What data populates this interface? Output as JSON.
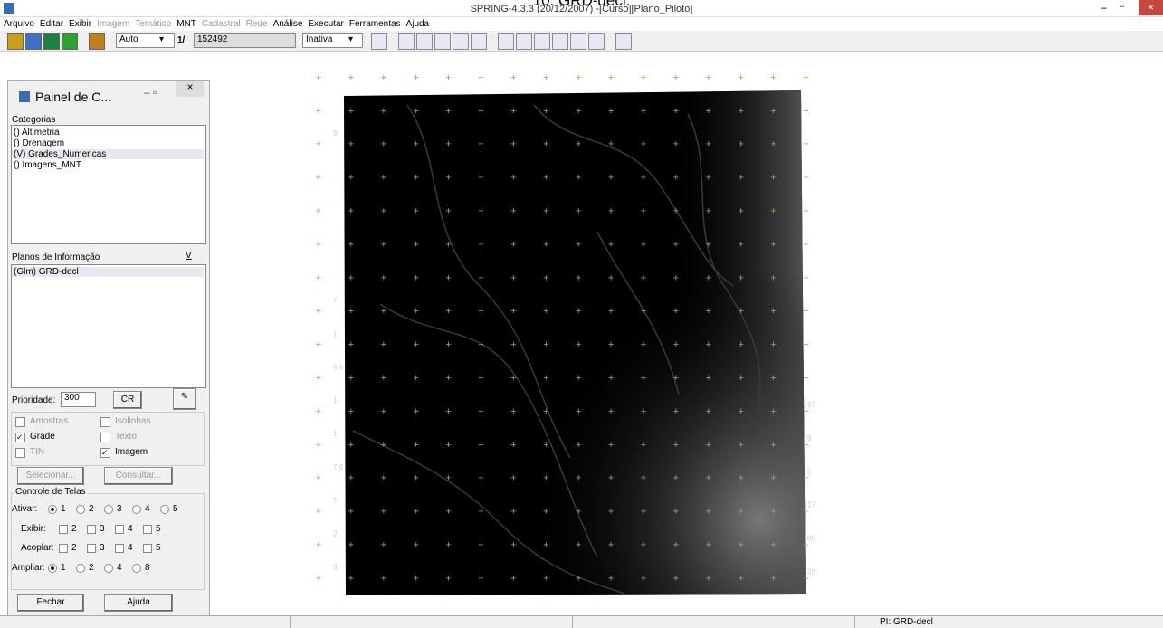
{
  "caption": "10. GRD-decl.",
  "window": {
    "title": "SPRING-4.3.3 (20/12/2007) -[Curso][Plano_Piloto]"
  },
  "menu": [
    {
      "label": "Arquivo",
      "enabled": true
    },
    {
      "label": "Editar",
      "enabled": true
    },
    {
      "label": "Exibir",
      "enabled": true
    },
    {
      "label": "Imagem",
      "enabled": false
    },
    {
      "label": "Temático",
      "enabled": false
    },
    {
      "label": "MNT",
      "enabled": true
    },
    {
      "label": "Cadastral",
      "enabled": false
    },
    {
      "label": "Rede",
      "enabled": false
    },
    {
      "label": "Análise",
      "enabled": true
    },
    {
      "label": "Executar",
      "enabled": true
    },
    {
      "label": "Ferramentas",
      "enabled": true
    },
    {
      "label": "Ajuda",
      "enabled": true
    }
  ],
  "toolbar": {
    "mode": "Auto",
    "scale_prefix": "1/",
    "scale": "152492",
    "state": "Inativa"
  },
  "panel": {
    "title": "Painel de C...",
    "categories_label": "Categorias",
    "categories": [
      "() Altimetria",
      "() Drenagem",
      "(V) Grades_Numericas",
      "() Imagens_MNT"
    ],
    "planes_label": "Planos de Informação",
    "planes_button": "V",
    "planes": [
      "(Glm) GRD-decl"
    ],
    "priority_label": "Prioridade:",
    "priority": "300",
    "cr_button": "CR",
    "checkboxes": [
      {
        "label": "Amostras",
        "checked": false,
        "enabled": false
      },
      {
        "label": "Isolinhas",
        "checked": false,
        "enabled": false
      },
      {
        "label": "Grade",
        "checked": true,
        "enabled": true
      },
      {
        "label": "Texto",
        "checked": false,
        "enabled": false
      },
      {
        "label": "TIN",
        "checked": false,
        "enabled": false
      },
      {
        "label": "Imagem",
        "checked": true,
        "enabled": true
      }
    ],
    "select_button": "Selecionar...",
    "query_button": "Consultar...",
    "screens": {
      "title": "Controle de Telas",
      "rows": [
        {
          "label": "Ativar:",
          "kind": "radio",
          "options": [
            "1",
            "2",
            "3",
            "4",
            "5"
          ]
        },
        {
          "label": "Exibir:",
          "kind": "check",
          "options": [
            "2",
            "3",
            "4",
            "5"
          ]
        },
        {
          "label": "Acoplar:",
          "kind": "check",
          "options": [
            "2",
            "3",
            "4",
            "5"
          ]
        },
        {
          "label": "Ampliar:",
          "kind": "radio",
          "options": [
            "1",
            "2",
            "4",
            "8"
          ]
        }
      ]
    },
    "close_button": "Fechar",
    "help_button": "Ajuda"
  },
  "map_labels": {
    "left": [
      "8.",
      "7",
      "1",
      "6.6",
      "1",
      "1",
      "7.9",
      "7",
      "2",
      "3."
    ],
    "right": [
      "97",
      "9",
      "6",
      "17",
      "00",
      "26"
    ]
  },
  "status": "PI: GRD-decl"
}
